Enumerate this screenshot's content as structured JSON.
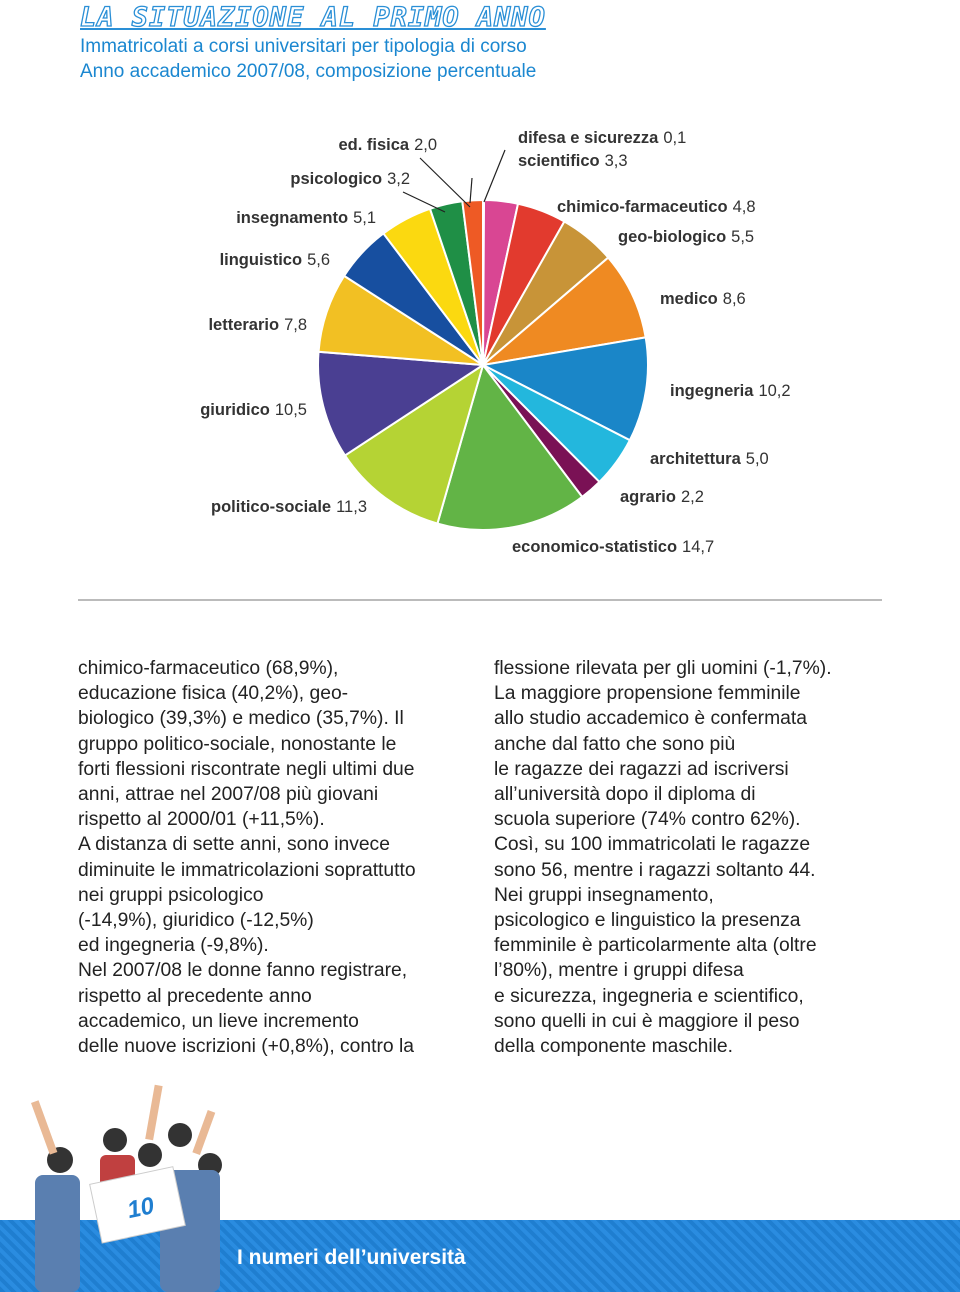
{
  "header": {
    "title": "LA SITUAZIONE AL PRIMO ANNO",
    "subtitle_lines": [
      "Immatricolati a corsi universitari per tipologia di corso",
      "Anno accademico 2007/08, composizione percentuale"
    ]
  },
  "chart_data": {
    "type": "pie",
    "categories": [
      "difesa e sicurezza",
      "scientifico",
      "chimico-farmaceutico",
      "geo-biologico",
      "medico",
      "ingegneria",
      "architettura",
      "agrario",
      "economico-statistico",
      "politico-sociale",
      "giuridico",
      "letterario",
      "linguistico",
      "insegnamento",
      "psicologico",
      "ed. fisica"
    ],
    "values": [
      0.1,
      3.3,
      4.8,
      5.5,
      8.6,
      10.2,
      5.0,
      2.2,
      14.7,
      11.3,
      10.5,
      7.8,
      5.6,
      5.1,
      3.2,
      2.0
    ],
    "value_labels": [
      "0,1",
      "3,3",
      "4,8",
      "5,5",
      "8,6",
      "10,2",
      "5,0",
      "2,2",
      "14,7",
      "11,3",
      "10,5",
      "7,8",
      "5,6",
      "5,1",
      "3,2",
      "2,0"
    ],
    "colors": [
      "#7a4a2a",
      "#d94693",
      "#e23a2e",
      "#c89438",
      "#ef8a22",
      "#1a86c8",
      "#23b7dd",
      "#7a1155",
      "#62b446",
      "#b5d334",
      "#4a3f92",
      "#f2c023",
      "#174fa0",
      "#fbd910",
      "#1f8f46",
      "#ee5a25"
    ]
  },
  "body": {
    "left_column": [
      "chimico-farmaceutico (68,9%),",
      "educazione fisica (40,2%), geo-",
      "biologico (39,3%) e medico (35,7%). Il",
      "gruppo politico-sociale, nonostante le",
      "forti flessioni riscontrate negli ultimi due",
      "anni, attrae nel 2007/08 più giovani",
      "rispetto al 2000/01 (+11,5%).",
      "A distanza di sette anni, sono invece",
      "diminuite le immatricolazioni soprattutto",
      "nei gruppi psicologico",
      "(-14,9%), giuridico (-12,5%)",
      "ed ingegneria (-9,8%).",
      "Nel 2007/08 le donne fanno registrare,",
      "rispetto al precedente anno",
      "accademico, un lieve incremento",
      "delle nuove iscrizioni (+0,8%), contro la"
    ],
    "right_column": [
      "flessione rilevata per gli uomini (-1,7%).",
      "La maggiore propensione femminile",
      "allo studio accademico è confermata",
      "anche dal fatto che sono più",
      "le ragazze dei ragazzi ad iscriversi",
      "all’università dopo il diploma di",
      "scuola superiore (74% contro 62%).",
      "Così, su 100 immatricolati le ragazze",
      "sono 56, mentre i ragazzi soltanto 44.",
      "Nei gruppi insegnamento,",
      "psicologico e linguistico la presenza",
      "femminile è particolarmente alta (oltre",
      "l’80%), mentre i gruppi difesa",
      "e sicurezza, ingegneria e scientifico,",
      "sono quelli in cui è maggiore il peso",
      "della componente maschile."
    ]
  },
  "footer": {
    "page_number": "10",
    "section": "I numeri dell’università"
  }
}
